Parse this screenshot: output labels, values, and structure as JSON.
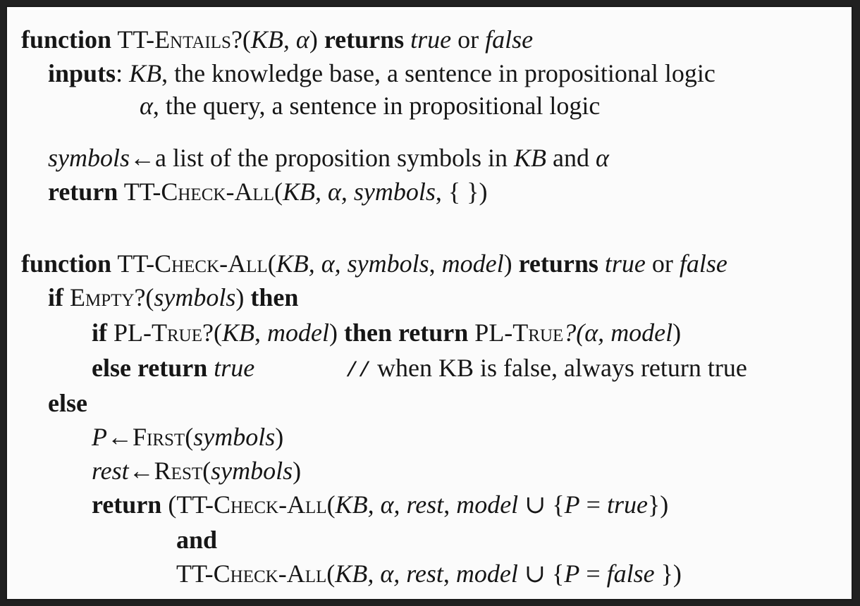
{
  "algo": {
    "l1": {
      "kw_function": "function",
      "name_prefix": "TT-",
      "name_sc": "Entails",
      "params_open": "?(",
      "param_kb": "KB",
      "comma_alpha": ", α",
      "close": ")",
      "kw_returns": "returns",
      "v_true": "true",
      "or": "or",
      "v_false": "false"
    },
    "l2": {
      "kw_inputs": "inputs",
      "colon": ":",
      "kb": "KB",
      "desc": ", the knowledge base, a sentence in propositional logic"
    },
    "l3": {
      "alpha": "α",
      "desc": ", the query, a sentence in propositional logic"
    },
    "l4": {
      "symbols": "symbols",
      "arrow": "←",
      "text": "a list of the proposition symbols in ",
      "kb": "KB",
      "and": " and ",
      "alpha": "α"
    },
    "l5": {
      "kw_return": "return",
      "prefix": "TT-",
      "name1": "Check",
      "dash": "-",
      "name2": "All",
      "open": "(",
      "kb": "KB",
      "alpha_comma": ", α, ",
      "symbols": "symbols",
      "rest": ", { })"
    },
    "l6": {
      "kw_function": "function",
      "prefix": "TT-",
      "name1": "Check",
      "dash": "-",
      "name2": "All",
      "open": "(",
      "kb": "KB",
      "alpha_comma": ", α, ",
      "symbols": "symbols",
      "comma": ", ",
      "model": "model",
      "close": ")",
      "kw_returns": "returns",
      "v_true": "true",
      "or": "or",
      "v_false": "false"
    },
    "l7": {
      "kw_if": "if",
      "empty": "Empty",
      "open": "?(",
      "symbols": "symbols",
      "close": ")",
      "kw_then": "then"
    },
    "l8": {
      "kw_if": "if",
      "pl": "PL-",
      "true_sc": "True",
      "open": "?(",
      "kb": "KB",
      "comma": ", ",
      "model": "model",
      "close": ")",
      "kw_then_return": "then return",
      "pl2": "PL-",
      "true2": "True",
      "open2": "?(α, ",
      "model2": "model",
      "close2": ")"
    },
    "l9": {
      "kw_else_return": "else return",
      "v_true": "true",
      "comment": "//",
      "comment_text": "when KB is false, always return true"
    },
    "l10": {
      "kw_else": "else"
    },
    "l11": {
      "p": "P",
      "arrow": "←",
      "first": "First",
      "open": "(",
      "symbols": "symbols",
      "close": ")"
    },
    "l12": {
      "rest": "rest",
      "arrow": "←",
      "rest_fn": "Rest",
      "open": "(",
      "symbols": "symbols",
      "close": ")"
    },
    "l13": {
      "kw_return": "return",
      "open_paren": "(TT-",
      "name1": "Check",
      "dash": "-",
      "name2": "All",
      "open": "(",
      "kb": "KB",
      "alpha_comma": ", α, ",
      "rest": "rest",
      "comma": ", ",
      "model": "model",
      "union": " ∪ {",
      "p": "P",
      "eq": " = ",
      "v_true": "true",
      "close": "})"
    },
    "l14": {
      "kw_and": "and"
    },
    "l15": {
      "prefix": "TT-",
      "name1": "Check",
      "dash": "-",
      "name2": "All",
      "open": "(",
      "kb": "KB",
      "alpha_comma": ", α, ",
      "rest": "rest",
      "comma": ", ",
      "model": "model",
      "union": " ∪ {",
      "p": "P",
      "eq": " = ",
      "v_false": "false",
      "close": " })"
    }
  }
}
